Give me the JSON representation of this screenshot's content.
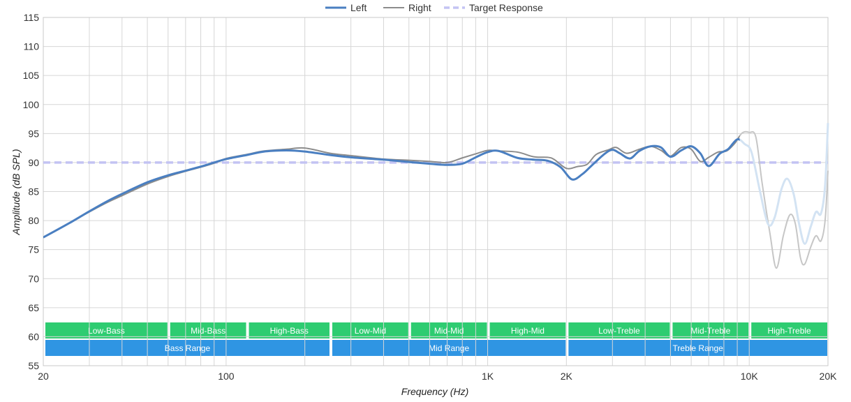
{
  "chart_data": {
    "type": "line",
    "xlabel": "Frequency (Hz)",
    "ylabel": "Amplitude (dB SPL)",
    "x_scale": "log",
    "xlim": [
      20,
      20000
    ],
    "ylim": [
      55,
      115
    ],
    "grid": true,
    "legend_position": "top-center",
    "x_ticks": [
      {
        "value": 20,
        "label": "20"
      },
      {
        "value": 100,
        "label": "100"
      },
      {
        "value": 1000,
        "label": "1K"
      },
      {
        "value": 2000,
        "label": "2K"
      },
      {
        "value": 10000,
        "label": "10K"
      },
      {
        "value": 20000,
        "label": "20K"
      }
    ],
    "y_ticks": [
      55,
      60,
      65,
      70,
      75,
      80,
      85,
      90,
      95,
      100,
      105,
      110,
      115
    ],
    "series": [
      {
        "name": "Left",
        "color": "#4a7fc1",
        "points": [
          [
            20,
            77.1
          ],
          [
            25,
            79.5
          ],
          [
            30,
            81.6
          ],
          [
            35,
            83.3
          ],
          [
            40,
            84.6
          ],
          [
            50,
            86.6
          ],
          [
            60,
            87.8
          ],
          [
            70,
            88.6
          ],
          [
            80,
            89.3
          ],
          [
            90,
            90.0
          ],
          [
            100,
            90.6
          ],
          [
            120,
            91.3
          ],
          [
            140,
            91.9
          ],
          [
            170,
            92.1
          ],
          [
            200,
            91.9
          ],
          [
            250,
            91.3
          ],
          [
            300,
            90.9
          ],
          [
            400,
            90.5
          ],
          [
            500,
            90.1
          ],
          [
            600,
            89.8
          ],
          [
            700,
            89.6
          ],
          [
            800,
            89.8
          ],
          [
            900,
            90.9
          ],
          [
            1000,
            91.8
          ],
          [
            1100,
            92.0
          ],
          [
            1300,
            90.8
          ],
          [
            1500,
            90.5
          ],
          [
            1700,
            90.3
          ],
          [
            1900,
            89.2
          ],
          [
            2100,
            87.1
          ],
          [
            2300,
            88.0
          ],
          [
            2500,
            89.5
          ],
          [
            2800,
            91.5
          ],
          [
            3000,
            92.2
          ],
          [
            3200,
            91.6
          ],
          [
            3500,
            90.7
          ],
          [
            3800,
            92.0
          ],
          [
            4200,
            92.8
          ],
          [
            4600,
            92.6
          ],
          [
            5000,
            91.0
          ],
          [
            5500,
            92.1
          ],
          [
            6000,
            92.8
          ],
          [
            6500,
            91.6
          ],
          [
            7000,
            89.4
          ],
          [
            7700,
            91.5
          ],
          [
            8300,
            92.3
          ],
          [
            9000,
            94.0
          ],
          [
            9600,
            93.2
          ],
          [
            10200,
            91.8
          ],
          [
            11000,
            85.0
          ],
          [
            11800,
            79.4
          ],
          [
            12500,
            80.5
          ],
          [
            13300,
            85.5
          ],
          [
            14000,
            87.2
          ],
          [
            14800,
            84.5
          ],
          [
            15500,
            79.5
          ],
          [
            16300,
            76.0
          ],
          [
            17200,
            79.0
          ],
          [
            18000,
            81.5
          ],
          [
            18800,
            81.2
          ],
          [
            19500,
            86.0
          ],
          [
            20000,
            96.8
          ]
        ]
      },
      {
        "name": "Right",
        "color": "#8c8c8c",
        "points": [
          [
            20,
            77.1
          ],
          [
            25,
            79.5
          ],
          [
            30,
            81.5
          ],
          [
            35,
            83.1
          ],
          [
            40,
            84.3
          ],
          [
            50,
            86.3
          ],
          [
            60,
            87.6
          ],
          [
            70,
            88.5
          ],
          [
            80,
            89.2
          ],
          [
            90,
            89.9
          ],
          [
            100,
            90.7
          ],
          [
            120,
            91.4
          ],
          [
            140,
            92.0
          ],
          [
            170,
            92.3
          ],
          [
            200,
            92.5
          ],
          [
            250,
            91.6
          ],
          [
            300,
            91.2
          ],
          [
            400,
            90.6
          ],
          [
            500,
            90.4
          ],
          [
            600,
            90.2
          ],
          [
            700,
            90.0
          ],
          [
            800,
            90.8
          ],
          [
            900,
            91.5
          ],
          [
            1000,
            92.1
          ],
          [
            1100,
            92.0
          ],
          [
            1300,
            91.8
          ],
          [
            1500,
            91.0
          ],
          [
            1700,
            90.9
          ],
          [
            1800,
            90.5
          ],
          [
            2000,
            89.0
          ],
          [
            2200,
            89.3
          ],
          [
            2400,
            89.7
          ],
          [
            2600,
            91.4
          ],
          [
            2900,
            92.2
          ],
          [
            3100,
            92.6
          ],
          [
            3400,
            91.6
          ],
          [
            3800,
            92.3
          ],
          [
            4200,
            92.8
          ],
          [
            4600,
            92.1
          ],
          [
            5000,
            91.1
          ],
          [
            5500,
            92.6
          ],
          [
            6000,
            92.3
          ],
          [
            6500,
            90.2
          ],
          [
            7000,
            90.9
          ],
          [
            7600,
            91.8
          ],
          [
            8200,
            92.0
          ],
          [
            8800,
            93.3
          ],
          [
            9400,
            95.1
          ],
          [
            10000,
            95.2
          ],
          [
            10600,
            94.4
          ],
          [
            11200,
            86.5
          ],
          [
            12000,
            77.8
          ],
          [
            12700,
            71.8
          ],
          [
            13500,
            77.4
          ],
          [
            14300,
            81.0
          ],
          [
            15000,
            79.5
          ],
          [
            15700,
            73.6
          ],
          [
            16300,
            72.5
          ],
          [
            17200,
            75.5
          ],
          [
            18000,
            77.4
          ],
          [
            18800,
            76.5
          ],
          [
            19500,
            80.0
          ],
          [
            20000,
            88.6
          ]
        ]
      },
      {
        "name": "Target Response",
        "color": "#c3c3f3",
        "dashed": true,
        "points": [
          [
            20,
            90
          ],
          [
            20000,
            90
          ]
        ]
      }
    ],
    "measured_upper_hz": 9200,
    "range_bands": [
      {
        "label": "Low-Bass",
        "from": 20,
        "to": 60,
        "color": "#2ecc71",
        "row": 1
      },
      {
        "label": "Mid-Bass",
        "from": 60,
        "to": 120,
        "color": "#2ecc71",
        "row": 1
      },
      {
        "label": "High-Bass",
        "from": 120,
        "to": 250,
        "color": "#2ecc71",
        "row": 1
      },
      {
        "label": "Low-Mid",
        "from": 250,
        "to": 500,
        "color": "#2ecc71",
        "row": 1
      },
      {
        "label": "Mid-Mid",
        "from": 500,
        "to": 1000,
        "color": "#2ecc71",
        "row": 1
      },
      {
        "label": "High-Mid",
        "from": 1000,
        "to": 2000,
        "color": "#2ecc71",
        "row": 1
      },
      {
        "label": "Low-Treble",
        "from": 2000,
        "to": 5000,
        "color": "#2ecc71",
        "row": 1
      },
      {
        "label": "Mid-Treble",
        "from": 5000,
        "to": 10000,
        "color": "#2ecc71",
        "row": 1
      },
      {
        "label": "High-Treble",
        "from": 10000,
        "to": 20000,
        "color": "#2ecc71",
        "row": 1
      },
      {
        "label": "Bass Range",
        "from": 20,
        "to": 250,
        "color": "#2f95e3",
        "row": 2
      },
      {
        "label": "Mid Range",
        "from": 250,
        "to": 2000,
        "color": "#2f95e3",
        "row": 2
      },
      {
        "label": "Treble Range",
        "from": 2000,
        "to": 20000,
        "color": "#2f95e3",
        "row": 2
      }
    ]
  }
}
